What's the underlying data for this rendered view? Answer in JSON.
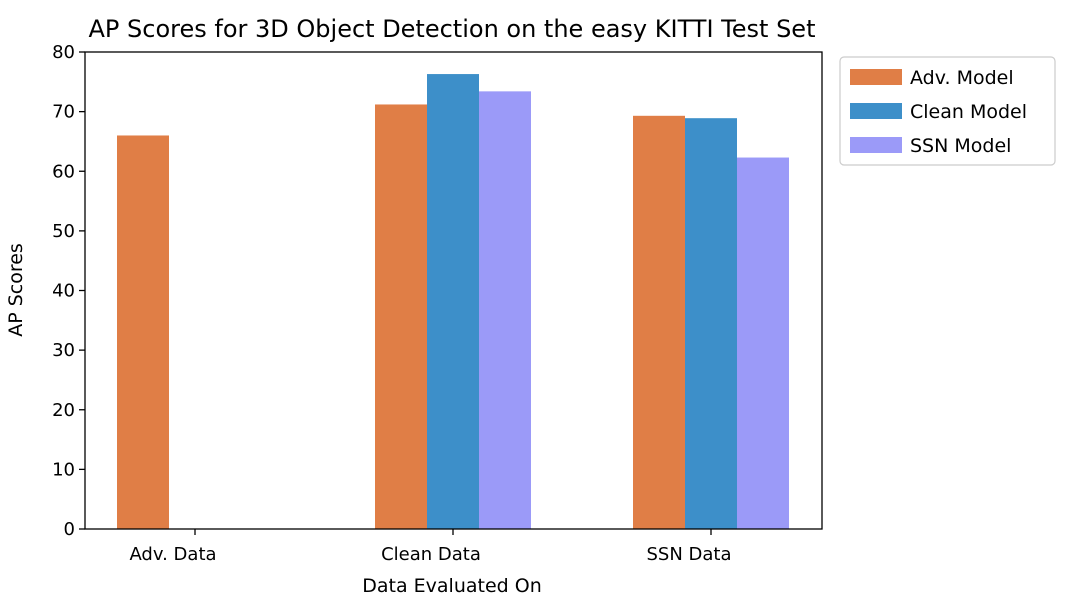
{
  "chart_data": {
    "type": "bar",
    "title": "AP Scores for 3D Object Detection on the easy KITTI Test Set",
    "xlabel": "Data Evaluated On",
    "ylabel": "AP Scores",
    "ylim": [
      0,
      80
    ],
    "yticks": [
      0,
      10,
      20,
      30,
      40,
      50,
      60,
      70,
      80
    ],
    "categories": [
      "Adv. Data",
      "Clean Data",
      "SSN Data"
    ],
    "series": [
      {
        "name": "Adv. Model",
        "color": "#e07e46",
        "values": [
          66.0,
          71.2,
          69.3
        ]
      },
      {
        "name": "Clean Model",
        "color": "#3d8fc9",
        "values": [
          null,
          76.3,
          68.9
        ]
      },
      {
        "name": "SSN Model",
        "color": "#9b9af8",
        "values": [
          null,
          73.4,
          62.3
        ]
      }
    ],
    "legend": {
      "position": "outside-right-top"
    },
    "grid": false
  }
}
